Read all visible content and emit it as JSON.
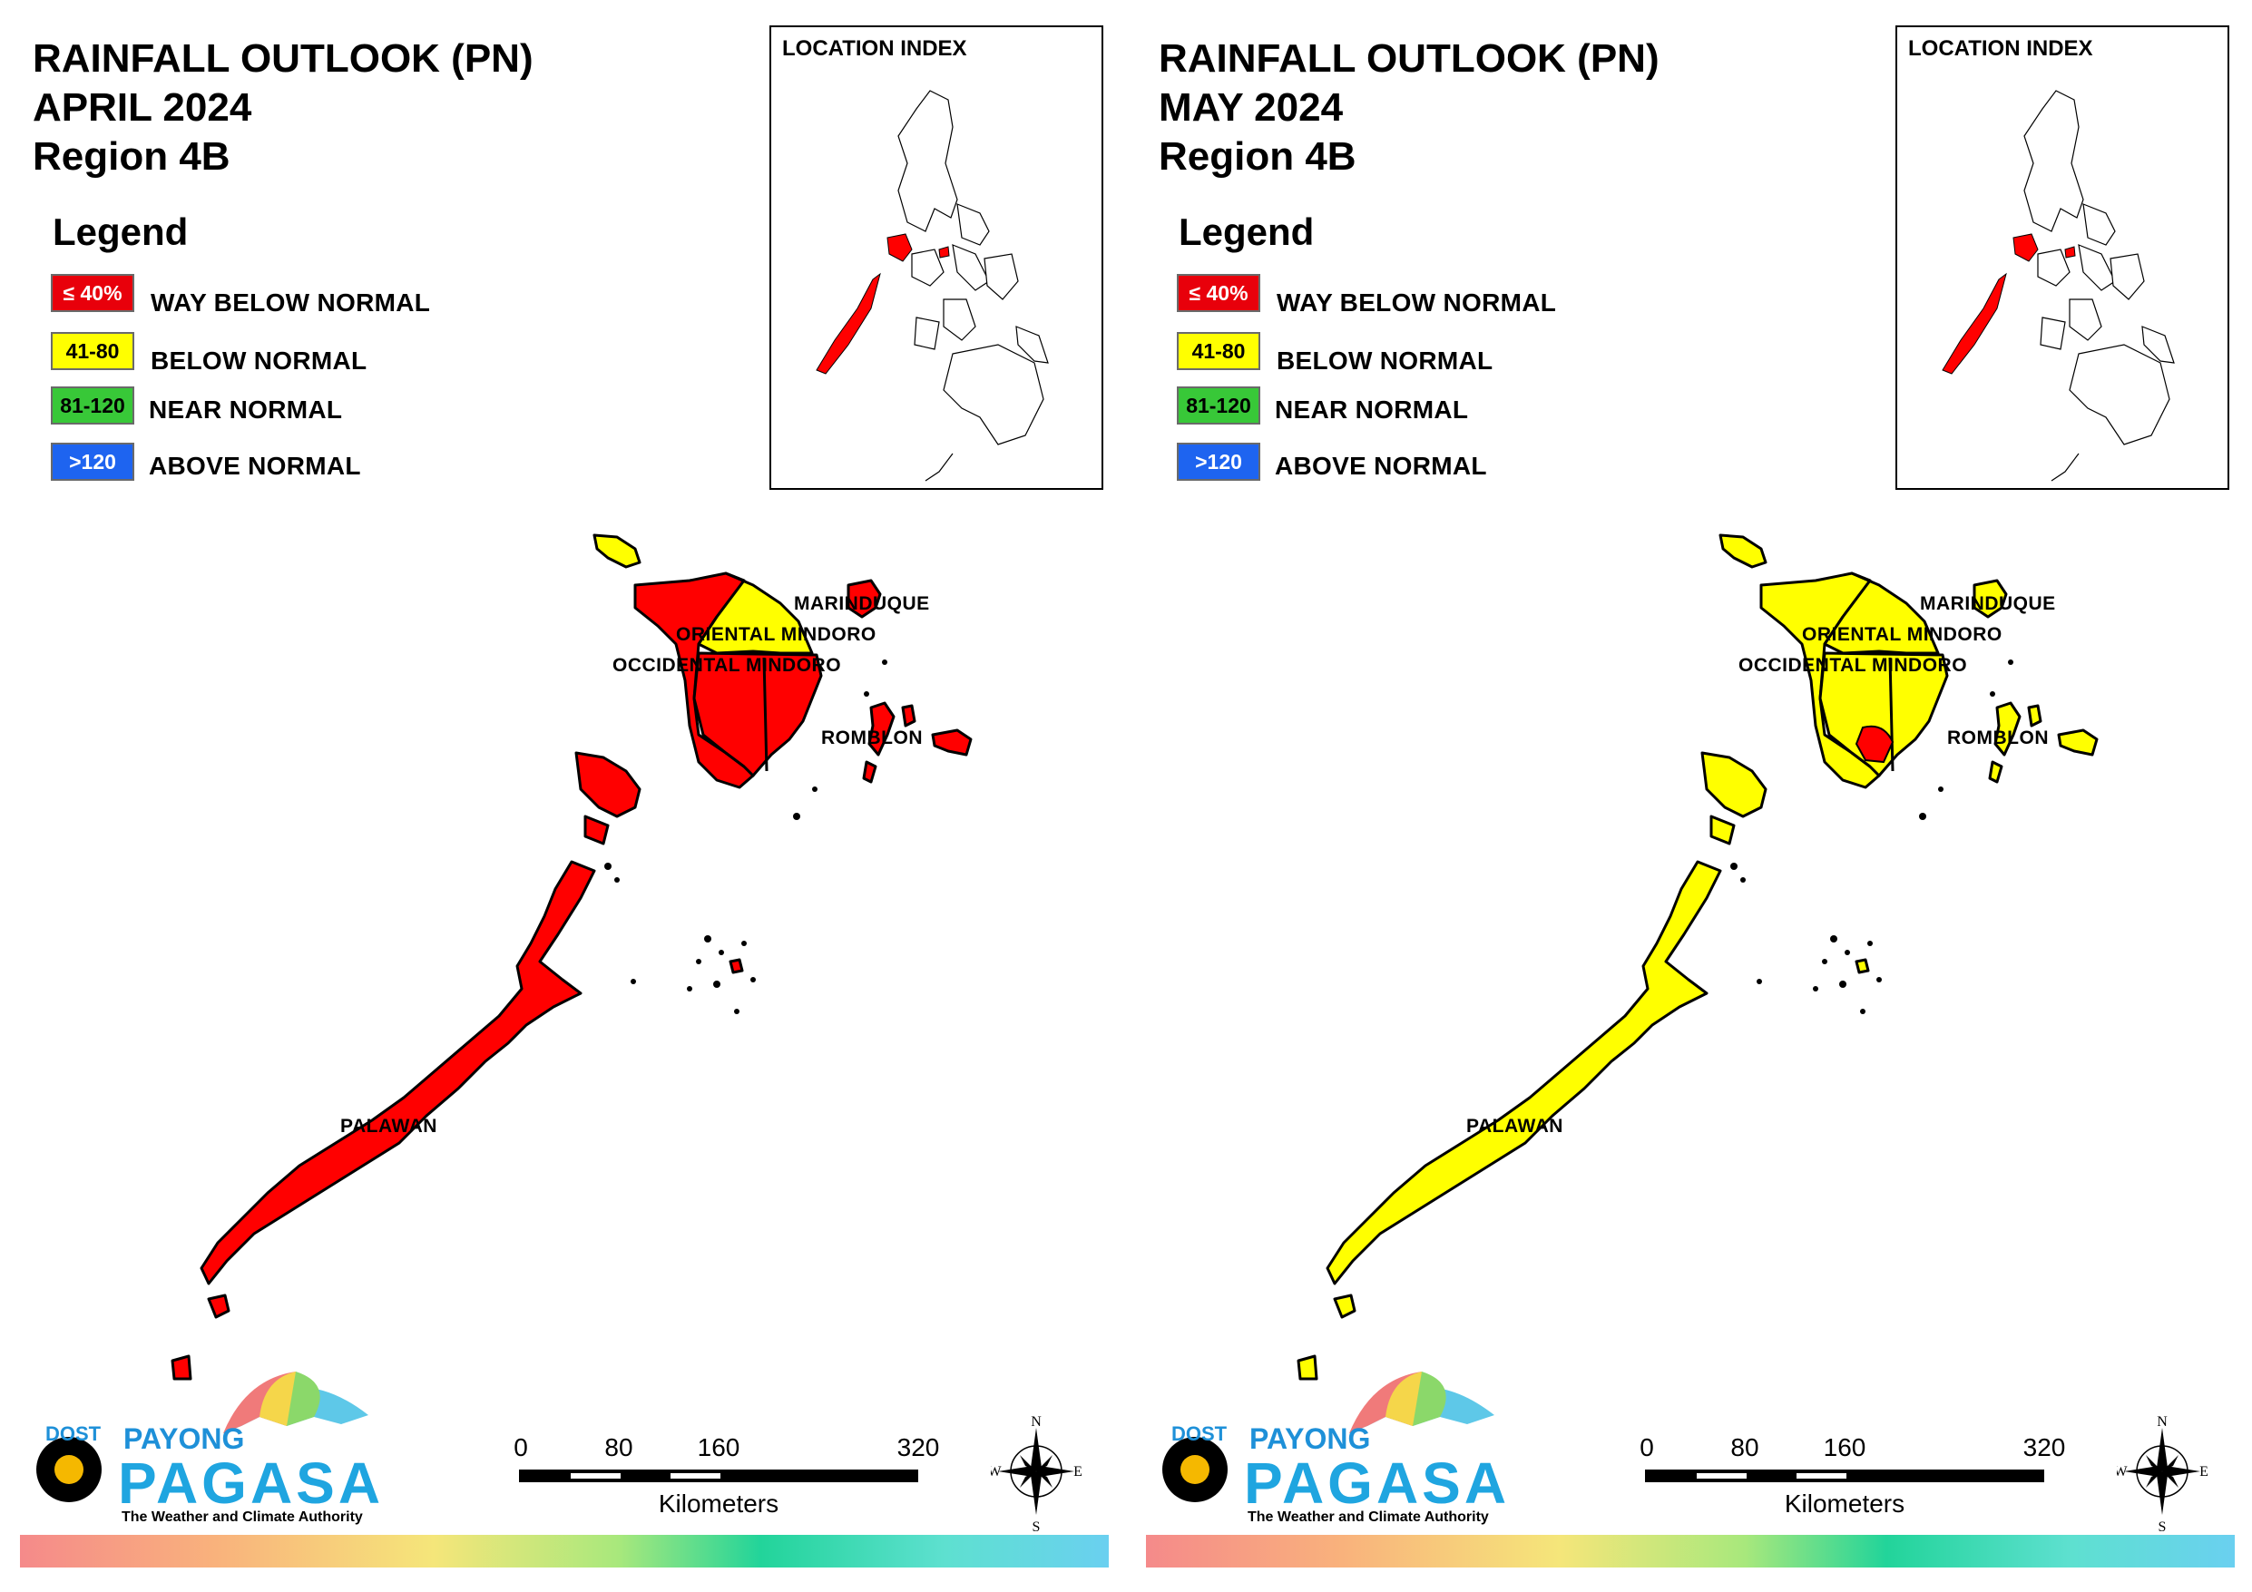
{
  "panels": [
    {
      "title_line1": "RAINFALL OUTLOOK (PN)",
      "title_line2": "APRIL 2024",
      "title_line3": "Region 4B",
      "location_index_label": "LOCATION INDEX",
      "province_colors": {
        "palawan": "#ff0000",
        "occidental_mindoro": "#ff0000",
        "oriental_mindoro_north": "#ffff00",
        "oriental_mindoro_south": "#ff0000",
        "marinduque": "#ff0000",
        "romblon": "#ff0000",
        "lubang": "#ffff00"
      }
    },
    {
      "title_line1": "RAINFALL OUTLOOK (PN)",
      "title_line2": "MAY 2024",
      "title_line3": "Region 4B",
      "location_index_label": "LOCATION INDEX",
      "province_colors": {
        "palawan": "#ffff00",
        "occidental_mindoro": "#ffff00",
        "oriental_mindoro_north": "#ffff00",
        "oriental_mindoro_south": "#ffff00",
        "marinduque": "#ffff00",
        "romblon": "#ffff00",
        "lubang": "#ffff00"
      }
    }
  ],
  "legend": {
    "title": "Legend",
    "items": [
      {
        "code": "≤ 40%",
        "label": "WAY BELOW NORMAL",
        "color": "#e8000b",
        "text_color": "#ffffff"
      },
      {
        "code": "41-80",
        "label": "BELOW NORMAL",
        "color": "#ffff00",
        "text_color": "#000000"
      },
      {
        "code": "81-120",
        "label": "NEAR NORMAL",
        "color": "#38c838",
        "text_color": "#000000"
      },
      {
        "code": ">120",
        "label": "ABOVE NORMAL",
        "color": "#1e64f0",
        "text_color": "#ffffff"
      }
    ]
  },
  "province_labels": {
    "marinduque": "MARINDUQUE",
    "oriental_mindoro": "ORIENTAL MINDORO",
    "occidental_mindoro": "OCCIDENTAL MINDORO",
    "romblon": "ROMBLON",
    "palawan": "PALAWAN"
  },
  "scale_bar": {
    "ticks": [
      "0",
      "80",
      "160",
      "320"
    ],
    "unit": "Kilometers"
  },
  "compass": {
    "n": "N",
    "s": "S",
    "e": "E",
    "w": "W"
  },
  "logo": {
    "dost": "DOST",
    "payong": "PAYONG",
    "pagasa": "PAGASA",
    "tagline": "The Weather and Climate Authority"
  }
}
